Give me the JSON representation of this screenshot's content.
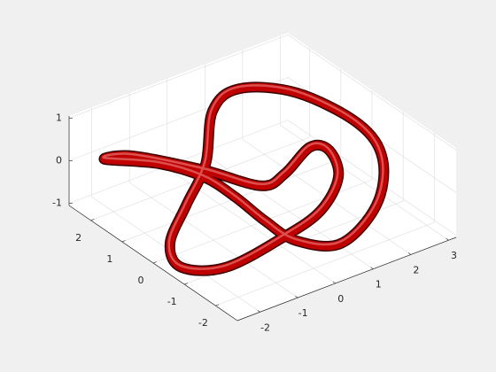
{
  "chart_data": {
    "type": "tube",
    "x": [
      -1.96,
      -1.14,
      -0.71,
      -0.67,
      -0.76,
      -0.72,
      -0.03,
      1.52,
      2.78,
      3.25,
      2.97,
      2.09,
      1.09,
      -0.35,
      -1.72,
      -2.94,
      -3.34,
      -2.58,
      -0.85,
      0.44,
      1.58,
      2.09,
      1.85,
      0.76,
      0.05,
      -0.54,
      -1.39
    ],
    "y": [
      2.33,
      1.57,
      0.66,
      -0.28,
      -1.38,
      -2.32,
      -2.91,
      -2.17,
      -0.85,
      0.49,
      2.13,
      2.92,
      2.56,
      1.04,
      0.01,
      -0.95,
      -1.8,
      -2.31,
      -2.06,
      -1.69,
      -0.88,
      0.02,
      0.35,
      -0.16,
      -0.26,
      0.88,
      2.11
    ],
    "z": [
      0,
      0,
      0,
      0,
      0,
      0,
      0,
      0,
      0,
      0,
      0,
      0,
      0,
      0,
      0,
      0,
      0,
      0,
      0,
      0,
      0,
      0,
      0,
      0,
      0,
      0,
      0
    ],
    "color": "#c00000",
    "xlim": [
      -2.6,
      3.2
    ],
    "ylim": [
      -2.7,
      2.7
    ],
    "zlim": [
      -1.05,
      1.05
    ],
    "xticks": [
      -2,
      -1,
      0,
      1,
      2,
      3
    ],
    "yticks": [
      -2,
      -1,
      0,
      1,
      2
    ],
    "zticks": [
      -1,
      0,
      1
    ],
    "grid": true
  }
}
